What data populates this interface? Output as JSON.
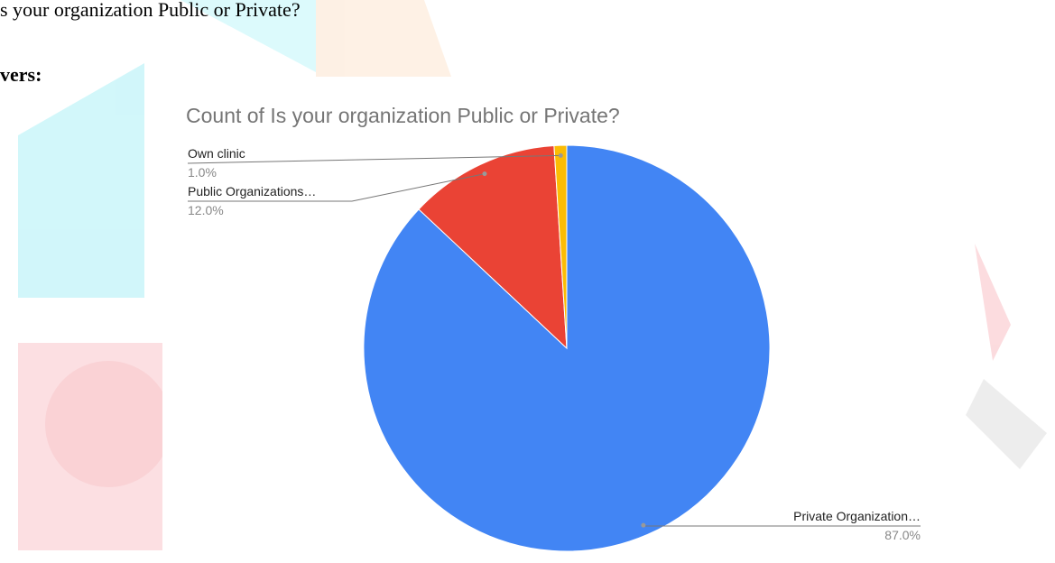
{
  "document": {
    "question": "s your organization Public or Private?",
    "answers_label": "vers:"
  },
  "chart_data": {
    "type": "pie",
    "title": "Count of Is your organization Public or Private?",
    "categories": [
      "Private Organization…",
      "Public Organizations…",
      "Own clinic"
    ],
    "values": [
      87,
      12,
      1
    ],
    "value_labels": [
      "87.0%",
      "12.0%",
      "1.0%"
    ],
    "colors": [
      "#4285f4",
      "#ea4335",
      "#fbbc04"
    ]
  }
}
